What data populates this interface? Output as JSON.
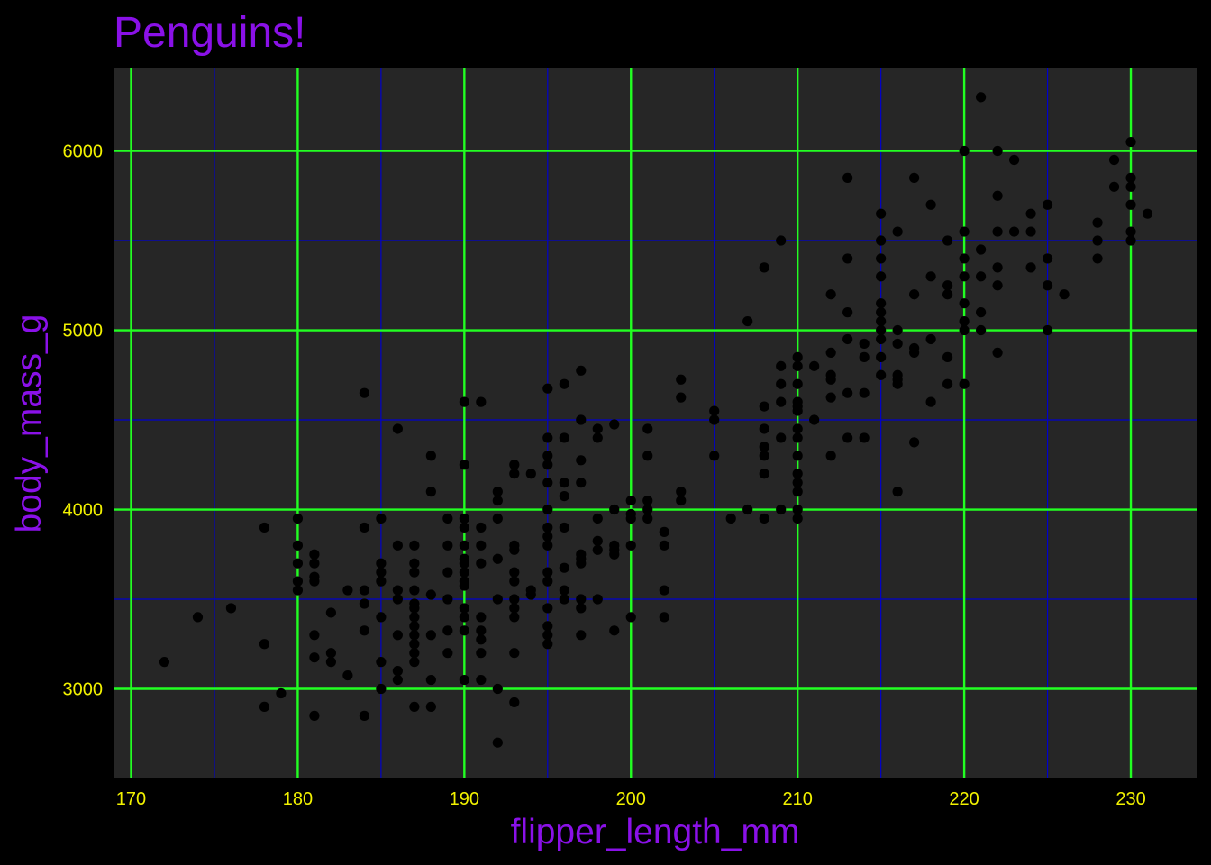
{
  "colors": {
    "background": "#000000",
    "panel": "#262626",
    "major_grid": "#22ff22",
    "minor_grid": "#0000cc",
    "points": "#000000",
    "title": "#8a11e8",
    "axis_title": "#8a11e8",
    "tick_label": "#f2f200"
  },
  "chart_data": {
    "type": "scatter",
    "title": "Penguins!",
    "xlabel": "flipper_length_mm",
    "ylabel": "body_mass_g",
    "xlim": [
      169,
      234
    ],
    "ylim": [
      2500,
      6460
    ],
    "x_major_ticks": [
      170,
      180,
      190,
      200,
      210,
      220,
      230
    ],
    "x_minor_ticks": [
      175,
      185,
      195,
      205,
      215,
      225
    ],
    "y_major_ticks": [
      3000,
      4000,
      5000,
      6000
    ],
    "y_minor_ticks": [
      3500,
      4500,
      5500
    ],
    "x_tick_labels": [
      "170",
      "180",
      "190",
      "200",
      "210",
      "220",
      "230"
    ],
    "y_tick_labels": [
      "3000",
      "4000",
      "5000",
      "6000"
    ],
    "grid": true,
    "legend": "none",
    "points": [
      [
        172,
        3150
      ],
      [
        174,
        3400
      ],
      [
        176,
        3450
      ],
      [
        178,
        3900
      ],
      [
        178,
        3250
      ],
      [
        178,
        2900
      ],
      [
        179,
        2975
      ],
      [
        180,
        3950
      ],
      [
        180,
        3800
      ],
      [
        180,
        3700
      ],
      [
        180,
        3600
      ],
      [
        180,
        3550
      ],
      [
        181,
        3750
      ],
      [
        181,
        3700
      ],
      [
        181,
        3625
      ],
      [
        181,
        3600
      ],
      [
        181,
        3300
      ],
      [
        181,
        3175
      ],
      [
        181,
        2850
      ],
      [
        182,
        3425
      ],
      [
        182,
        3200
      ],
      [
        182,
        3150
      ],
      [
        183,
        3550
      ],
      [
        183,
        3075
      ],
      [
        184,
        4650
      ],
      [
        184,
        3900
      ],
      [
        184,
        3550
      ],
      [
        184,
        3475
      ],
      [
        184,
        3325
      ],
      [
        184,
        2850
      ],
      [
        185,
        3950
      ],
      [
        185,
        3700
      ],
      [
        185,
        3650
      ],
      [
        185,
        3600
      ],
      [
        185,
        3400
      ],
      [
        185,
        3150
      ],
      [
        185,
        3000
      ],
      [
        186,
        4450
      ],
      [
        186,
        3800
      ],
      [
        186,
        3550
      ],
      [
        186,
        3500
      ],
      [
        186,
        3300
      ],
      [
        186,
        3100
      ],
      [
        186,
        3050
      ],
      [
        187,
        3800
      ],
      [
        187,
        3700
      ],
      [
        187,
        3650
      ],
      [
        187,
        3550
      ],
      [
        187,
        3475
      ],
      [
        187,
        3450
      ],
      [
        187,
        3400
      ],
      [
        187,
        3350
      ],
      [
        187,
        3300
      ],
      [
        187,
        3250
      ],
      [
        187,
        3200
      ],
      [
        187,
        3150
      ],
      [
        187,
        2900
      ],
      [
        188,
        4300
      ],
      [
        188,
        4100
      ],
      [
        188,
        3525
      ],
      [
        188,
        3300
      ],
      [
        188,
        3050
      ],
      [
        188,
        2900
      ],
      [
        189,
        3950
      ],
      [
        189,
        3800
      ],
      [
        189,
        3650
      ],
      [
        189,
        3500
      ],
      [
        189,
        3325
      ],
      [
        189,
        3200
      ],
      [
        190,
        4600
      ],
      [
        190,
        4250
      ],
      [
        190,
        3950
      ],
      [
        190,
        3900
      ],
      [
        190,
        3800
      ],
      [
        190,
        3725
      ],
      [
        190,
        3700
      ],
      [
        190,
        3650
      ],
      [
        190,
        3600
      ],
      [
        190,
        3575
      ],
      [
        190,
        3450
      ],
      [
        190,
        3400
      ],
      [
        190,
        3325
      ],
      [
        190,
        3050
      ],
      [
        191,
        4600
      ],
      [
        191,
        3900
      ],
      [
        191,
        3800
      ],
      [
        191,
        3700
      ],
      [
        191,
        3400
      ],
      [
        191,
        3325
      ],
      [
        191,
        3275
      ],
      [
        191,
        3200
      ],
      [
        191,
        3050
      ],
      [
        192,
        4100
      ],
      [
        192,
        4050
      ],
      [
        192,
        3950
      ],
      [
        192,
        3725
      ],
      [
        192,
        3500
      ],
      [
        192,
        3000
      ],
      [
        192,
        2700
      ],
      [
        193,
        4250
      ],
      [
        193,
        4200
      ],
      [
        193,
        3800
      ],
      [
        193,
        3775
      ],
      [
        193,
        3650
      ],
      [
        193,
        3600
      ],
      [
        193,
        3500
      ],
      [
        193,
        3450
      ],
      [
        193,
        3400
      ],
      [
        193,
        3200
      ],
      [
        193,
        2925
      ],
      [
        194,
        4200
      ],
      [
        194,
        3550
      ],
      [
        194,
        3525
      ],
      [
        195,
        4675
      ],
      [
        195,
        4400
      ],
      [
        195,
        4300
      ],
      [
        195,
        4250
      ],
      [
        195,
        4150
      ],
      [
        195,
        4000
      ],
      [
        195,
        3900
      ],
      [
        195,
        3850
      ],
      [
        195,
        3800
      ],
      [
        195,
        3650
      ],
      [
        195,
        3600
      ],
      [
        195,
        3450
      ],
      [
        195,
        3350
      ],
      [
        195,
        3300
      ],
      [
        195,
        3250
      ],
      [
        196,
        4700
      ],
      [
        196,
        4400
      ],
      [
        196,
        4150
      ],
      [
        196,
        4075
      ],
      [
        196,
        3900
      ],
      [
        196,
        3675
      ],
      [
        196,
        3550
      ],
      [
        196,
        3500
      ],
      [
        197,
        4775
      ],
      [
        197,
        4500
      ],
      [
        197,
        4275
      ],
      [
        197,
        4150
      ],
      [
        197,
        3750
      ],
      [
        197,
        3725
      ],
      [
        197,
        3700
      ],
      [
        197,
        3500
      ],
      [
        197,
        3450
      ],
      [
        197,
        3300
      ],
      [
        198,
        4450
      ],
      [
        198,
        4400
      ],
      [
        198,
        3950
      ],
      [
        198,
        3825
      ],
      [
        198,
        3775
      ],
      [
        198,
        3500
      ],
      [
        199,
        4475
      ],
      [
        199,
        4000
      ],
      [
        199,
        3800
      ],
      [
        199,
        3775
      ],
      [
        199,
        3750
      ],
      [
        199,
        3325
      ],
      [
        200,
        4050
      ],
      [
        200,
        3975
      ],
      [
        200,
        3950
      ],
      [
        200,
        3800
      ],
      [
        200,
        3400
      ],
      [
        201,
        4450
      ],
      [
        201,
        4300
      ],
      [
        201,
        4050
      ],
      [
        201,
        4000
      ],
      [
        201,
        3950
      ],
      [
        202,
        3875
      ],
      [
        202,
        3800
      ],
      [
        202,
        3550
      ],
      [
        202,
        3400
      ],
      [
        203,
        4725
      ],
      [
        203,
        4625
      ],
      [
        203,
        4100
      ],
      [
        203,
        4050
      ],
      [
        205,
        4550
      ],
      [
        205,
        4500
      ],
      [
        205,
        4300
      ],
      [
        206,
        3950
      ],
      [
        207,
        5050
      ],
      [
        207,
        4000
      ],
      [
        208,
        5350
      ],
      [
        208,
        4575
      ],
      [
        208,
        4450
      ],
      [
        208,
        4350
      ],
      [
        208,
        4300
      ],
      [
        208,
        4200
      ],
      [
        208,
        3950
      ],
      [
        209,
        5500
      ],
      [
        209,
        4800
      ],
      [
        209,
        4700
      ],
      [
        209,
        4600
      ],
      [
        209,
        4400
      ],
      [
        209,
        4000
      ],
      [
        210,
        4850
      ],
      [
        210,
        4800
      ],
      [
        210,
        4700
      ],
      [
        210,
        4600
      ],
      [
        210,
        4575
      ],
      [
        210,
        4550
      ],
      [
        210,
        4450
      ],
      [
        210,
        4400
      ],
      [
        210,
        4300
      ],
      [
        210,
        4200
      ],
      [
        210,
        4150
      ],
      [
        210,
        4100
      ],
      [
        210,
        4000
      ],
      [
        210,
        3950
      ],
      [
        211,
        4800
      ],
      [
        211,
        4500
      ],
      [
        212,
        5200
      ],
      [
        212,
        4875
      ],
      [
        212,
        4750
      ],
      [
        212,
        4725
      ],
      [
        212,
        4625
      ],
      [
        212,
        4300
      ],
      [
        213,
        5850
      ],
      [
        213,
        5400
      ],
      [
        213,
        5100
      ],
      [
        213,
        4950
      ],
      [
        213,
        4650
      ],
      [
        213,
        4400
      ],
      [
        214,
        4925
      ],
      [
        214,
        4850
      ],
      [
        214,
        4650
      ],
      [
        214,
        4400
      ],
      [
        215,
        5650
      ],
      [
        215,
        5500
      ],
      [
        215,
        5400
      ],
      [
        215,
        5300
      ],
      [
        215,
        5150
      ],
      [
        215,
        5100
      ],
      [
        215,
        5050
      ],
      [
        215,
        5000
      ],
      [
        215,
        4950
      ],
      [
        215,
        4850
      ],
      [
        215,
        4750
      ],
      [
        216,
        5550
      ],
      [
        216,
        5000
      ],
      [
        216,
        4925
      ],
      [
        216,
        4750
      ],
      [
        216,
        4725
      ],
      [
        216,
        4700
      ],
      [
        216,
        4100
      ],
      [
        217,
        5850
      ],
      [
        217,
        5200
      ],
      [
        217,
        4900
      ],
      [
        217,
        4875
      ],
      [
        217,
        4375
      ],
      [
        218,
        5700
      ],
      [
        218,
        5300
      ],
      [
        218,
        4950
      ],
      [
        218,
        4600
      ],
      [
        219,
        5500
      ],
      [
        219,
        5250
      ],
      [
        219,
        5200
      ],
      [
        219,
        4850
      ],
      [
        219,
        4700
      ],
      [
        220,
        6000
      ],
      [
        220,
        5550
      ],
      [
        220,
        5400
      ],
      [
        220,
        5300
      ],
      [
        220,
        5150
      ],
      [
        220,
        5050
      ],
      [
        220,
        5000
      ],
      [
        220,
        4700
      ],
      [
        221,
        6300
      ],
      [
        221,
        5450
      ],
      [
        221,
        5300
      ],
      [
        221,
        5100
      ],
      [
        221,
        5000
      ],
      [
        222,
        6000
      ],
      [
        222,
        5750
      ],
      [
        222,
        5550
      ],
      [
        222,
        5350
      ],
      [
        222,
        5250
      ],
      [
        222,
        4875
      ],
      [
        223,
        5950
      ],
      [
        223,
        5550
      ],
      [
        224,
        5650
      ],
      [
        224,
        5550
      ],
      [
        224,
        5350
      ],
      [
        225,
        5700
      ],
      [
        225,
        5400
      ],
      [
        225,
        5250
      ],
      [
        225,
        5000
      ],
      [
        226,
        5200
      ],
      [
        228,
        5600
      ],
      [
        228,
        5500
      ],
      [
        228,
        5400
      ],
      [
        229,
        5950
      ],
      [
        229,
        5800
      ],
      [
        230,
        6050
      ],
      [
        230,
        5850
      ],
      [
        230,
        5800
      ],
      [
        230,
        5700
      ],
      [
        230,
        5550
      ],
      [
        230,
        5500
      ],
      [
        231,
        5650
      ]
    ]
  }
}
